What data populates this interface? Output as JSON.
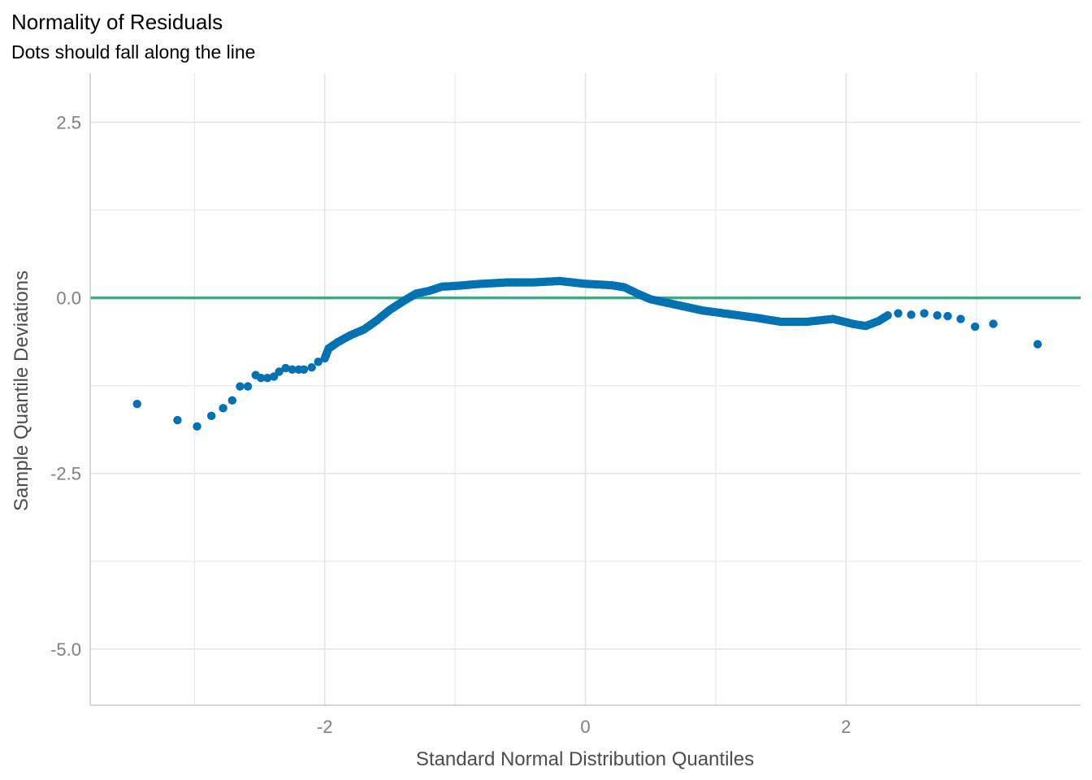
{
  "chart_data": {
    "type": "scatter",
    "title": "Normality of Residuals",
    "subtitle": "Dots should fall along the line",
    "xlabel": "Standard Normal Distribution Quantiles",
    "ylabel": "Sample Quantile Deviations",
    "xlim": [
      -3.8,
      3.8
    ],
    "ylim": [
      -5.8,
      3.2
    ],
    "x_ticks": [
      -2,
      0,
      2
    ],
    "x_tick_labels": [
      "-2",
      "0",
      "2"
    ],
    "x_minor_ticks": [
      -3,
      -1,
      1,
      3
    ],
    "y_ticks": [
      -5.0,
      -2.5,
      0.0,
      2.5
    ],
    "y_tick_labels": [
      "-5.0",
      "-2.5",
      "0.0",
      "2.5"
    ],
    "y_minor_ticks": [
      -3.75,
      -1.25,
      1.25
    ],
    "grid": true,
    "legend": "none",
    "point_color": "#0072B2",
    "reference_line": {
      "y": 0,
      "color": "#3AAA85"
    },
    "anchor_points": [
      [
        -3.44,
        -1.51
      ],
      [
        -3.13,
        -1.74
      ],
      [
        -2.98,
        -1.83
      ],
      [
        -2.87,
        -1.68
      ],
      [
        -2.78,
        -1.57
      ],
      [
        -2.71,
        -1.46
      ],
      [
        -2.65,
        -1.26
      ],
      [
        -2.59,
        -1.26
      ],
      [
        -2.53,
        -1.1
      ],
      [
        -2.49,
        -1.14
      ],
      [
        -2.44,
        -1.14
      ],
      [
        -2.39,
        -1.12
      ],
      [
        -2.35,
        -1.05
      ],
      [
        -2.3,
        -1.0
      ],
      [
        -2.25,
        -1.02
      ],
      [
        -2.2,
        -1.02
      ],
      [
        -2.16,
        -1.02
      ],
      [
        -2.1,
        -0.99
      ],
      [
        -2.05,
        -0.91
      ],
      [
        -2.0,
        -0.86
      ],
      [
        -1.97,
        -0.72
      ],
      [
        -1.9,
        -0.63
      ],
      [
        -1.8,
        -0.53
      ],
      [
        -1.7,
        -0.45
      ],
      [
        -1.6,
        -0.32
      ],
      [
        -1.5,
        -0.17
      ],
      [
        -1.4,
        -0.05
      ],
      [
        -1.3,
        0.06
      ],
      [
        -1.2,
        0.1
      ],
      [
        -1.1,
        0.16
      ],
      [
        -1.0,
        0.17
      ],
      [
        -0.8,
        0.2
      ],
      [
        -0.6,
        0.22
      ],
      [
        -0.4,
        0.22
      ],
      [
        -0.2,
        0.24
      ],
      [
        0.0,
        0.2
      ],
      [
        0.2,
        0.18
      ],
      [
        0.3,
        0.15
      ],
      [
        0.4,
        0.06
      ],
      [
        0.5,
        -0.02
      ],
      [
        0.7,
        -0.1
      ],
      [
        0.9,
        -0.18
      ],
      [
        1.1,
        -0.23
      ],
      [
        1.3,
        -0.28
      ],
      [
        1.5,
        -0.34
      ],
      [
        1.7,
        -0.34
      ],
      [
        1.9,
        -0.3
      ],
      [
        2.05,
        -0.37
      ],
      [
        2.15,
        -0.4
      ],
      [
        2.25,
        -0.33
      ],
      [
        2.32,
        -0.25
      ],
      [
        2.4,
        -0.22
      ],
      [
        2.5,
        -0.24
      ],
      [
        2.6,
        -0.22
      ],
      [
        2.7,
        -0.25
      ],
      [
        2.78,
        -0.26
      ],
      [
        2.88,
        -0.3
      ],
      [
        2.99,
        -0.41
      ],
      [
        3.13,
        -0.37
      ],
      [
        3.47,
        -0.66
      ]
    ]
  }
}
